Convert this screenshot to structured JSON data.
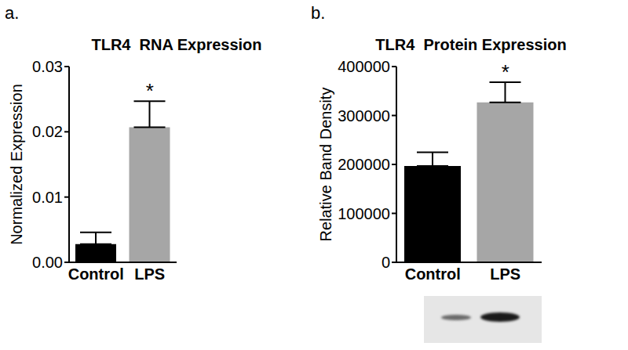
{
  "chart_data": [
    {
      "type": "bar",
      "panel_label": "a.",
      "title": "TLR4  RNA Expression",
      "y_label": "Normalized Expression",
      "categories": [
        "Control",
        "LPS"
      ],
      "values": [
        0.0028,
        0.0207
      ],
      "errors": [
        0.0018,
        0.004
      ],
      "colors": [
        "#000000",
        "#a6a6a6"
      ],
      "ylim": [
        0,
        0.03
      ],
      "yticks": [
        {
          "value": 0,
          "label": "0.00"
        },
        0.01,
        0.02,
        0.03
      ],
      "annotations": [
        {
          "text": "*",
          "x": "LPS"
        }
      ]
    },
    {
      "type": "bar",
      "panel_label": "b.",
      "title": "TLR4  Protein Expression",
      "y_label": "Relative Band Density",
      "categories": [
        "Control",
        "LPS"
      ],
      "values": [
        197000,
        327000
      ],
      "errors": [
        28000,
        41000
      ],
      "colors": [
        "#000000",
        "#a6a6a6"
      ],
      "ylim": [
        0,
        400000
      ],
      "yticks": [
        0,
        100000,
        200000,
        300000,
        400000
      ],
      "annotations": [
        {
          "text": "*",
          "x": "LPS"
        }
      ]
    }
  ]
}
